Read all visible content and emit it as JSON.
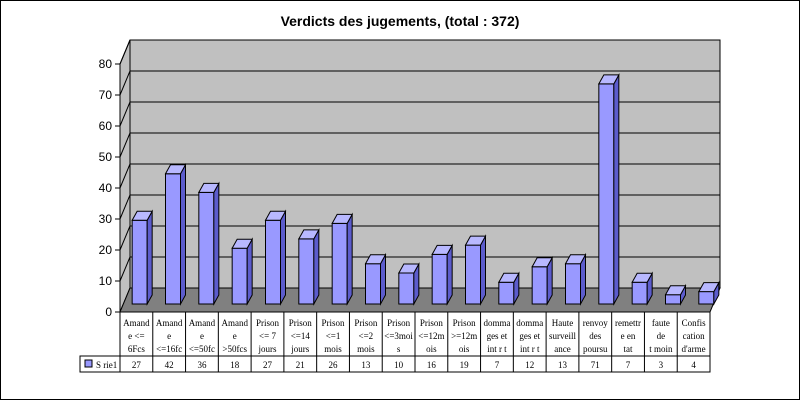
{
  "chart_data": {
    "type": "bar",
    "title": "Verdicts des jugements, (total : 372)",
    "ylim": [
      0,
      80
    ],
    "yticks": [
      0,
      10,
      20,
      30,
      40,
      50,
      60,
      70,
      80
    ],
    "grid": true,
    "legend_placement": "left of data table",
    "categories": [
      [
        "Amand",
        "e <=",
        "6Fcs"
      ],
      [
        "Amand",
        "e",
        "<=16fc"
      ],
      [
        "Amand",
        "e",
        "<=50fc"
      ],
      [
        "Amand",
        "e",
        ">50fcs"
      ],
      [
        "Prison",
        "<= 7",
        "jours"
      ],
      [
        "Prison",
        "<=14",
        "jours"
      ],
      [
        "Prison",
        "<=1",
        "mois"
      ],
      [
        "Prison",
        "<=2",
        "mois"
      ],
      [
        "Prison",
        "<=3moi",
        "s"
      ],
      [
        "Prison",
        "<=12m",
        "ois"
      ],
      [
        "Prison",
        ">=12m",
        "ois"
      ],
      [
        "domma",
        "ges et",
        "int r t"
      ],
      [
        "domma",
        "ges et",
        "int r t"
      ],
      [
        "Haute",
        "surveill",
        "ance"
      ],
      [
        "renvoy",
        "des",
        "poursu"
      ],
      [
        "remettr",
        "e en",
        "tat"
      ],
      [
        "faute",
        "de",
        "t moin"
      ],
      [
        "Confis",
        "cation",
        "d'arme"
      ]
    ],
    "series": [
      {
        "name": "S rie1",
        "color": "#9999ff",
        "values": [
          27,
          42,
          36,
          18,
          27,
          21,
          26,
          13,
          10,
          16,
          19,
          7,
          12,
          13,
          71,
          7,
          3,
          4
        ]
      }
    ]
  }
}
